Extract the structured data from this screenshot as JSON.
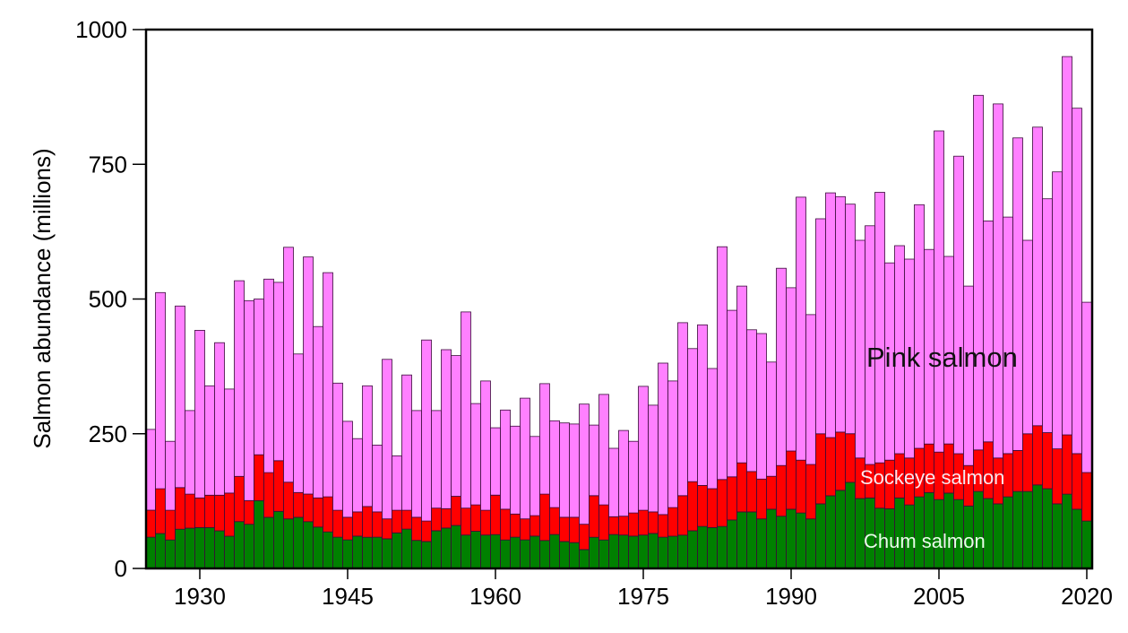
{
  "chart_data": {
    "type": "bar",
    "stacked": true,
    "title": "",
    "xlabel": "",
    "ylabel": "Salmon abundance (millions)",
    "ylim": [
      0,
      1000
    ],
    "yticks": [
      0,
      250,
      500,
      750,
      1000
    ],
    "ytick_labels": [
      "0",
      "250",
      "500",
      "750",
      "1000"
    ],
    "xticks": [
      1930,
      1945,
      1960,
      1975,
      1990,
      2005,
      2020
    ],
    "xtick_labels": [
      "1930",
      "1945",
      "1960",
      "1975",
      "1990",
      "2005",
      "2020"
    ],
    "grid": false,
    "legend_position": "inline labels",
    "categories": [
      1925,
      1926,
      1927,
      1928,
      1929,
      1930,
      1931,
      1932,
      1933,
      1934,
      1935,
      1936,
      1937,
      1938,
      1939,
      1940,
      1941,
      1942,
      1943,
      1944,
      1945,
      1946,
      1947,
      1948,
      1949,
      1950,
      1951,
      1952,
      1953,
      1954,
      1955,
      1956,
      1957,
      1958,
      1959,
      1960,
      1961,
      1962,
      1963,
      1964,
      1965,
      1966,
      1967,
      1968,
      1969,
      1970,
      1971,
      1972,
      1973,
      1974,
      1975,
      1976,
      1977,
      1978,
      1979,
      1980,
      1981,
      1982,
      1983,
      1984,
      1985,
      1986,
      1987,
      1988,
      1989,
      1990,
      1991,
      1992,
      1993,
      1994,
      1995,
      1996,
      1997,
      1998,
      1999,
      2000,
      2001,
      2002,
      2003,
      2004,
      2005,
      2006,
      2007,
      2008,
      2009,
      2010,
      2011,
      2012,
      2013,
      2014,
      2015,
      2016,
      2017,
      2018,
      2019,
      2020
    ],
    "series": [
      {
        "name": "Chum salmon",
        "color": "#008000",
        "cumulative_top": [
          58,
          65,
          53,
          73,
          75,
          76,
          76,
          70,
          60,
          87,
          82,
          126,
          95,
          106,
          92,
          95,
          87,
          77,
          68,
          58,
          53,
          60,
          58,
          58,
          55,
          66,
          73,
          52,
          50,
          70,
          75,
          80,
          62,
          69,
          62,
          63,
          53,
          58,
          53,
          60,
          52,
          63,
          50,
          48,
          35,
          58,
          53,
          63,
          62,
          60,
          62,
          65,
          58,
          60,
          62,
          70,
          78,
          76,
          78,
          90,
          105,
          105,
          92,
          110,
          97,
          110,
          103,
          92,
          120,
          135,
          145,
          160,
          130,
          131,
          112,
          111,
          131,
          118,
          133,
          141,
          128,
          140,
          128,
          116,
          143,
          130,
          120,
          133,
          143,
          143,
          155,
          148,
          120,
          138,
          110,
          88
        ]
      },
      {
        "name": "Sockeye salmon",
        "color": "#ff0000",
        "cumulative_top": [
          108,
          148,
          108,
          150,
          138,
          131,
          136,
          136,
          140,
          171,
          126,
          211,
          178,
          200,
          160,
          141,
          138,
          131,
          133,
          108,
          95,
          105,
          115,
          105,
          92,
          108,
          108,
          95,
          88,
          112,
          111,
          134,
          112,
          118,
          108,
          136,
          110,
          101,
          92,
          98,
          138,
          113,
          95,
          95,
          82,
          135,
          118,
          96,
          97,
          103,
          108,
          105,
          100,
          113,
          135,
          161,
          154,
          148,
          165,
          170,
          196,
          180,
          166,
          171,
          191,
          218,
          201,
          193,
          250,
          243,
          253,
          250,
          205,
          193,
          196,
          201,
          213,
          205,
          223,
          231,
          216,
          231,
          213,
          191,
          220,
          235,
          205,
          213,
          219,
          250,
          265,
          252,
          222,
          248,
          213,
          178
        ]
      },
      {
        "name": "Pink salmon",
        "color": "#ff80ff",
        "cumulative_top": [
          258,
          512,
          236,
          487,
          293,
          442,
          339,
          419,
          333,
          534,
          497,
          500,
          537,
          531,
          596,
          398,
          578,
          449,
          549,
          344,
          273,
          241,
          339,
          229,
          388,
          209,
          359,
          293,
          424,
          293,
          406,
          395,
          476,
          306,
          348,
          261,
          294,
          264,
          316,
          245,
          343,
          274,
          270,
          268,
          305,
          266,
          323,
          223,
          256,
          236,
          338,
          303,
          381,
          348,
          456,
          408,
          452,
          371,
          597,
          479,
          524,
          443,
          436,
          383,
          557,
          521,
          689,
          471,
          649,
          697,
          690,
          676,
          609,
          636,
          698,
          567,
          599,
          574,
          675,
          592,
          812,
          579,
          765,
          524,
          878,
          645,
          862,
          652,
          799,
          609,
          819,
          686,
          736,
          950,
          854,
          494
        ]
      }
    ],
    "annotations": [
      {
        "text": "Pink salmon",
        "series": "Pink salmon"
      },
      {
        "text": "Sockeye salmon",
        "series": "Sockeye salmon"
      },
      {
        "text": "Chum salmon",
        "series": "Chum salmon"
      }
    ]
  },
  "labels": {
    "ylabel": "Salmon abundance (millions)",
    "pink": "Pink salmon",
    "sockeye": "Sockeye salmon",
    "chum": "Chum salmon"
  }
}
